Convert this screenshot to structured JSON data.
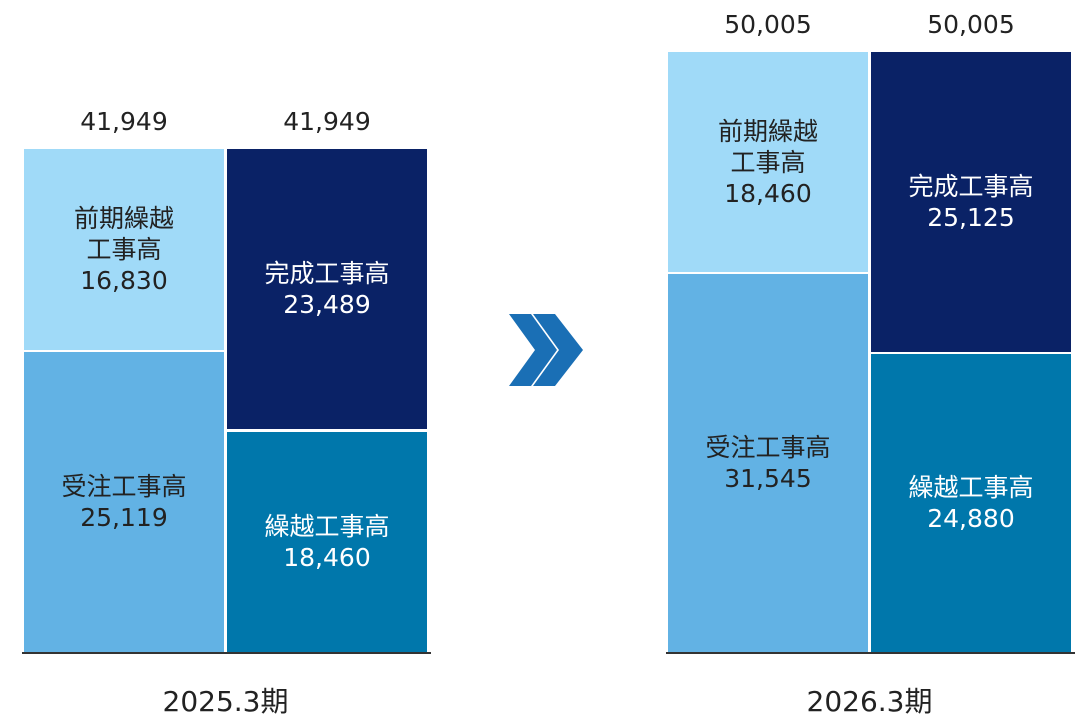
{
  "chart_data": {
    "type": "stacked_bar",
    "ylim": [
      0,
      50005
    ],
    "groups": [
      {
        "label": "2025.3期",
        "columns": [
          {
            "total": 41949,
            "total_label": "41,949",
            "segments": [
              {
                "name": "受注工事高",
                "value": 25119,
                "value_label": "25,119",
                "color": "#62b2e4",
                "text_color": "#222222"
              },
              {
                "name": "前期繰越\n工事高",
                "value": 16830,
                "value_label": "16,830",
                "color": "#a0daf8",
                "text_color": "#222222"
              }
            ]
          },
          {
            "total": 41949,
            "total_label": "41,949",
            "segments": [
              {
                "name": "繰越工事高",
                "value": 18460,
                "value_label": "18,460",
                "color": "#0077ab",
                "text_color": "#ffffff"
              },
              {
                "name": "完成工事高",
                "value": 23489,
                "value_label": "23,489",
                "color": "#0a2266",
                "text_color": "#ffffff"
              }
            ]
          }
        ]
      },
      {
        "label": "2026.3期",
        "columns": [
          {
            "total": 50005,
            "total_label": "50,005",
            "segments": [
              {
                "name": "受注工事高",
                "value": 31545,
                "value_label": "31,545",
                "color": "#62b2e4",
                "text_color": "#222222"
              },
              {
                "name": "前期繰越\n工事高",
                "value": 18460,
                "value_label": "18,460",
                "color": "#a0daf8",
                "text_color": "#222222"
              }
            ]
          },
          {
            "total": 50005,
            "total_label": "50,005",
            "segments": [
              {
                "name": "繰越工事高",
                "value": 24880,
                "value_label": "24,880",
                "color": "#0077ab",
                "text_color": "#ffffff"
              },
              {
                "name": "完成工事高",
                "value": 25125,
                "value_label": "25,125",
                "color": "#0a2266",
                "text_color": "#ffffff"
              }
            ]
          }
        ]
      }
    ]
  }
}
